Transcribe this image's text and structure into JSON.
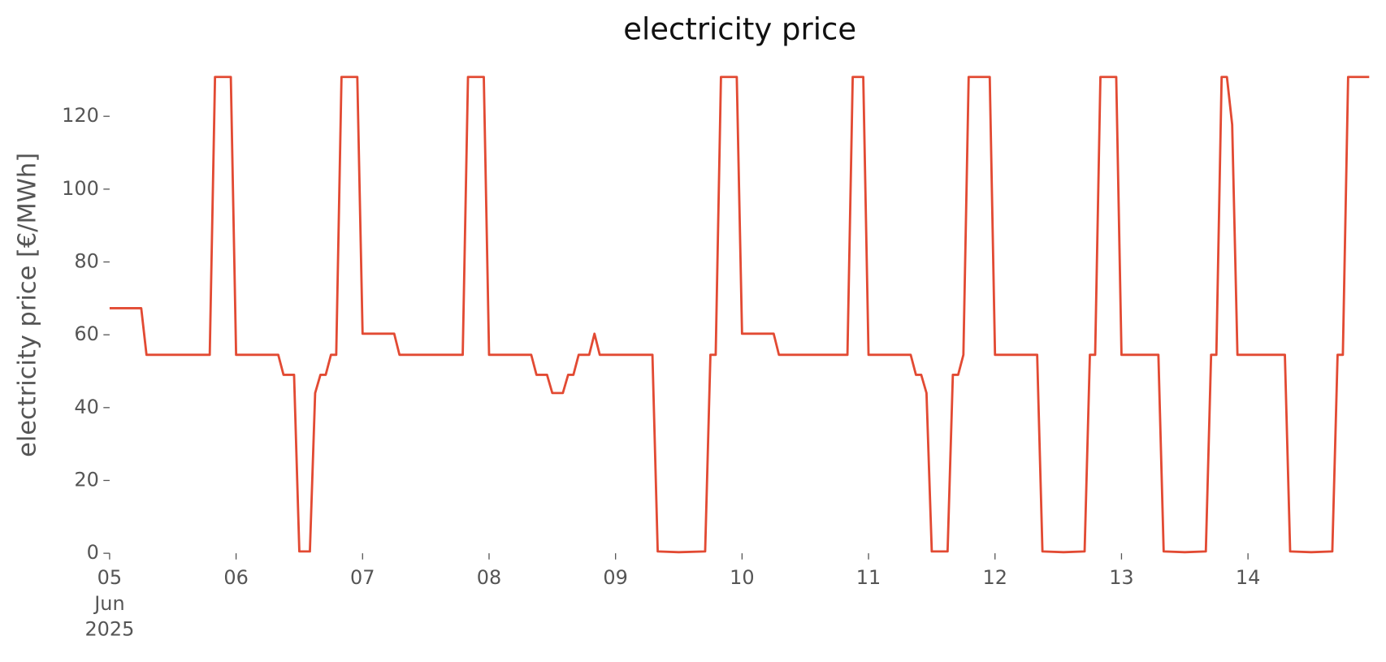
{
  "chart_data": {
    "type": "line",
    "title": "electricity price",
    "ylabel": "electricity price [€/MWh]",
    "x": [
      "2025-06-05 00:00",
      "2025-06-05 06:00",
      "2025-06-05 07:00",
      "2025-06-05 19:00",
      "2025-06-05 20:00",
      "2025-06-05 23:00",
      "2025-06-06 00:00",
      "2025-06-06 08:00",
      "2025-06-06 09:00",
      "2025-06-06 11:00",
      "2025-06-06 12:00",
      "2025-06-06 14:00",
      "2025-06-06 15:00",
      "2025-06-06 16:00",
      "2025-06-06 17:00",
      "2025-06-06 18:00",
      "2025-06-06 19:00",
      "2025-06-06 20:00",
      "2025-06-06 23:00",
      "2025-06-07 00:00",
      "2025-06-07 06:00",
      "2025-06-07 07:00",
      "2025-06-07 19:00",
      "2025-06-07 20:00",
      "2025-06-07 23:00",
      "2025-06-08 00:00",
      "2025-06-08 08:00",
      "2025-06-08 09:00",
      "2025-06-08 11:00",
      "2025-06-08 12:00",
      "2025-06-08 14:00",
      "2025-06-08 15:00",
      "2025-06-08 16:00",
      "2025-06-08 17:00",
      "2025-06-08 19:00",
      "2025-06-08 20:00",
      "2025-06-08 21:00",
      "2025-06-09 07:00",
      "2025-06-09 08:00",
      "2025-06-09 12:00",
      "2025-06-09 17:00",
      "2025-06-09 18:00",
      "2025-06-09 19:00",
      "2025-06-09 20:00",
      "2025-06-09 23:00",
      "2025-06-10 00:00",
      "2025-06-10 06:00",
      "2025-06-10 07:00",
      "2025-06-10 20:00",
      "2025-06-10 21:00",
      "2025-06-10 23:00",
      "2025-06-11 00:00",
      "2025-06-11 08:00",
      "2025-06-11 09:00",
      "2025-06-11 10:00",
      "2025-06-11 11:00",
      "2025-06-11 12:00",
      "2025-06-11 15:00",
      "2025-06-11 16:00",
      "2025-06-11 17:00",
      "2025-06-11 18:00",
      "2025-06-11 19:00",
      "2025-06-11 23:00",
      "2025-06-12 00:00",
      "2025-06-12 08:00",
      "2025-06-12 09:00",
      "2025-06-12 13:00",
      "2025-06-12 17:00",
      "2025-06-12 18:00",
      "2025-06-12 19:00",
      "2025-06-12 20:00",
      "2025-06-12 23:00",
      "2025-06-13 00:00",
      "2025-06-13 07:00",
      "2025-06-13 08:00",
      "2025-06-13 12:00",
      "2025-06-13 16:00",
      "2025-06-13 17:00",
      "2025-06-13 18:00",
      "2025-06-13 19:00",
      "2025-06-13 20:00",
      "2025-06-13 21:00",
      "2025-06-13 22:00",
      "2025-06-14 07:00",
      "2025-06-14 08:00",
      "2025-06-14 12:00",
      "2025-06-14 16:00",
      "2025-06-14 17:00",
      "2025-06-14 18:00",
      "2025-06-14 19:00",
      "2025-06-14 23:00"
    ],
    "series": [
      {
        "name": "electricity price",
        "color": "#E24A33",
        "values": [
          67.3,
          67.3,
          54.5,
          54.5,
          130.8,
          130.8,
          54.5,
          54.5,
          49,
          49,
          0.5,
          0.5,
          44,
          49,
          49,
          54.5,
          54.5,
          130.8,
          130.8,
          60.3,
          60.3,
          54.5,
          54.5,
          130.8,
          130.8,
          54.5,
          54.5,
          49,
          49,
          44,
          44,
          49,
          49,
          54.5,
          54.5,
          60.3,
          54.5,
          54.5,
          0.5,
          0.3,
          0.5,
          54.5,
          54.5,
          130.8,
          130.8,
          60.3,
          60.3,
          54.5,
          54.5,
          130.8,
          130.8,
          54.5,
          54.5,
          49,
          49,
          44,
          0.5,
          0.5,
          49,
          49,
          54.5,
          130.8,
          130.8,
          54.5,
          54.5,
          0.5,
          0.3,
          0.5,
          54.5,
          54.5,
          130.8,
          130.8,
          54.5,
          54.5,
          0.5,
          0.3,
          0.5,
          54.5,
          54.5,
          130.8,
          130.8,
          117.7,
          54.5,
          54.5,
          0.5,
          0.3,
          0.5,
          54.5,
          54.5,
          130.8,
          130.8
        ]
      }
    ],
    "xlim": [
      "2025-06-05 00:00",
      "2025-06-14 23:00"
    ],
    "xticks": [
      {
        "value": "2025-06-05 00:00",
        "label": "05\nJun\n2025"
      },
      {
        "value": "2025-06-06 00:00",
        "label": "06"
      },
      {
        "value": "2025-06-07 00:00",
        "label": "07"
      },
      {
        "value": "2025-06-08 00:00",
        "label": "08"
      },
      {
        "value": "2025-06-09 00:00",
        "label": "09"
      },
      {
        "value": "2025-06-10 00:00",
        "label": "10"
      },
      {
        "value": "2025-06-11 00:00",
        "label": "11"
      },
      {
        "value": "2025-06-12 00:00",
        "label": "12"
      },
      {
        "value": "2025-06-13 00:00",
        "label": "13"
      },
      {
        "value": "2025-06-14 00:00",
        "label": "14"
      }
    ],
    "ylim": [
      0,
      133
    ],
    "yticks": [
      0,
      20,
      40,
      60,
      80,
      100,
      120
    ],
    "grid": false
  }
}
